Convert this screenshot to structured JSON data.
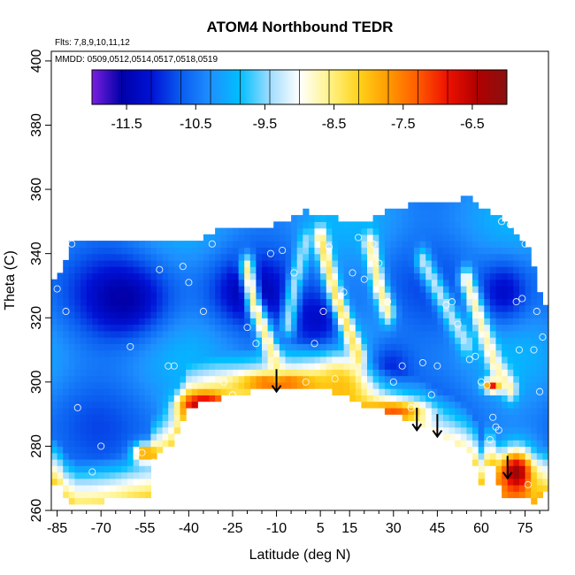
{
  "chart_data": {
    "type": "heatmap",
    "title": "ATOM4 Northbound TEDR",
    "xlabel": "Latitude (deg N)",
    "ylabel": "Theta (C)",
    "xlim": [
      -87,
      83
    ],
    "ylim": [
      260,
      403
    ],
    "x_ticks": [
      -85,
      -70,
      -55,
      -40,
      -25,
      -10,
      5,
      15,
      30,
      45,
      60,
      75
    ],
    "y_ticks": [
      260,
      280,
      300,
      320,
      340,
      360,
      380,
      400
    ],
    "annotations": {
      "flights": "Flts: 7,8,9,10,11,12",
      "dates": "MMDD: 0509,0512,0514,0517,0518,0519"
    },
    "colorbar": {
      "ticks": [
        "-11.5",
        "-10.5",
        "-9.5",
        "-8.5",
        "-7.5",
        "-6.5"
      ],
      "tick_values": [
        -11.5,
        -10.5,
        -9.5,
        -8.5,
        -7.5,
        -6.5
      ],
      "range": [
        -12.0,
        -6.0
      ],
      "colors": [
        "#7a1fe0",
        "#0000a8",
        "#0012d6",
        "#0a5cf0",
        "#1e90ff",
        "#00bfff",
        "#9fdcff",
        "#ffffff",
        "#fff38a",
        "#ffd21a",
        "#ff9a00",
        "#ff5a00",
        "#ee1000",
        "#b00000",
        "#8a1010"
      ]
    },
    "boundary_bottom": [
      [
        -85,
        269
      ],
      [
        -82,
        264
      ],
      [
        -78,
        262
      ],
      [
        -70,
        263
      ],
      [
        -60,
        264
      ],
      [
        -53,
        264
      ],
      [
        -52,
        276
      ],
      [
        -46,
        281
      ],
      [
        -40,
        292
      ],
      [
        -30,
        295
      ],
      [
        -20,
        297
      ],
      [
        -10,
        299
      ],
      [
        0,
        299
      ],
      [
        10,
        297
      ],
      [
        20,
        293
      ],
      [
        30,
        290
      ],
      [
        40,
        287
      ],
      [
        45,
        284
      ],
      [
        50,
        282
      ],
      [
        55,
        279
      ],
      [
        58,
        275
      ],
      [
        60,
        269
      ],
      [
        63,
        276
      ],
      [
        67,
        265
      ],
      [
        72,
        264
      ],
      [
        78,
        263
      ],
      [
        81,
        266
      ]
    ],
    "boundary_top": [
      [
        -85,
        331
      ],
      [
        -80,
        343
      ],
      [
        -70,
        344
      ],
      [
        -55,
        344
      ],
      [
        -40,
        343
      ],
      [
        -30,
        347
      ],
      [
        -20,
        348
      ],
      [
        -10,
        349
      ],
      [
        0,
        353
      ],
      [
        10,
        351
      ],
      [
        20,
        350
      ],
      [
        30,
        354
      ],
      [
        40,
        356
      ],
      [
        50,
        356
      ],
      [
        55,
        358
      ],
      [
        60,
        354
      ],
      [
        68,
        350
      ],
      [
        75,
        344
      ],
      [
        79,
        332
      ],
      [
        81,
        323
      ]
    ],
    "high_turbulence_centers": [
      {
        "lat": -35,
        "theta": 293,
        "value": -6.4,
        "rx": 8,
        "ry": 4
      },
      {
        "lat": -10,
        "theta": 300,
        "value": -7.3,
        "rx": 14,
        "ry": 3
      },
      {
        "lat": 12,
        "theta": 298,
        "value": -8.0,
        "rx": 8,
        "ry": 9
      },
      {
        "lat": 30,
        "theta": 291,
        "value": -7.3,
        "rx": 10,
        "ry": 3
      },
      {
        "lat": 72,
        "theta": 272,
        "value": -6.2,
        "rx": 6,
        "ry": 7
      },
      {
        "lat": 64,
        "theta": 299,
        "value": -6.6,
        "rx": 3,
        "ry": 2
      },
      {
        "lat": -55,
        "theta": 278,
        "value": -7.5,
        "rx": 4,
        "ry": 3
      }
    ],
    "low_turbulence_centers": [
      {
        "lat": -60,
        "theta": 325,
        "value": -11.3,
        "rx": 15,
        "ry": 12
      },
      {
        "lat": -20,
        "theta": 328,
        "value": -11.2,
        "rx": 12,
        "ry": 10
      },
      {
        "lat": 5,
        "theta": 318,
        "value": -11.4,
        "rx": 10,
        "ry": 10
      },
      {
        "lat": 28,
        "theta": 305,
        "value": -11.2,
        "rx": 8,
        "ry": 8
      },
      {
        "lat": 68,
        "theta": 328,
        "value": -11.3,
        "rx": 8,
        "ry": 10
      }
    ],
    "ridge_lines": [
      {
        "points": [
          [
            -20,
            336
          ],
          [
            -18,
            325
          ],
          [
            -13,
            313
          ],
          [
            -10,
            305
          ]
        ],
        "value": -8.6
      },
      {
        "points": [
          [
            5,
            345
          ],
          [
            10,
            328
          ],
          [
            14,
            318
          ],
          [
            18,
            308
          ]
        ],
        "value": -8.4
      },
      {
        "points": [
          [
            0,
            344
          ],
          [
            -4,
            330
          ],
          [
            -6,
            318
          ]
        ],
        "value": -9.4
      },
      {
        "points": [
          [
            22,
            343
          ],
          [
            25,
            330
          ],
          [
            28,
            322
          ]
        ],
        "value": -8.6
      },
      {
        "points": [
          [
            55,
            332
          ],
          [
            60,
            318
          ],
          [
            65,
            305
          ],
          [
            70,
            298
          ]
        ],
        "value": -8.7
      },
      {
        "points": [
          [
            40,
            338
          ],
          [
            50,
            320
          ],
          [
            55,
            312
          ]
        ],
        "value": -9.3
      }
    ],
    "arrows": [
      {
        "lat": -10,
        "theta_top": 304,
        "theta_tip": 297
      },
      {
        "lat": 38,
        "theta_top": 292,
        "theta_tip": 285
      },
      {
        "lat": 45,
        "theta_top": 290,
        "theta_tip": 283
      },
      {
        "lat": 69,
        "theta_top": 277,
        "theta_tip": 270
      }
    ],
    "sample_points": [
      [
        -85,
        329
      ],
      [
        -82,
        322
      ],
      [
        -80,
        343
      ],
      [
        -78,
        292
      ],
      [
        -73,
        272
      ],
      [
        -70,
        280
      ],
      [
        -60,
        311
      ],
      [
        -56,
        278
      ],
      [
        -52,
        275
      ],
      [
        -50,
        335
      ],
      [
        -47,
        305
      ],
      [
        -45,
        305
      ],
      [
        -42,
        336
      ],
      [
        -40,
        331
      ],
      [
        -35,
        322
      ],
      [
        -32,
        343
      ],
      [
        -28,
        300
      ],
      [
        -25,
        296
      ],
      [
        -20,
        317
      ],
      [
        -17,
        312
      ],
      [
        -12,
        340
      ],
      [
        -8,
        341
      ],
      [
        -4,
        334
      ],
      [
        0,
        300
      ],
      [
        3,
        312
      ],
      [
        6,
        322
      ],
      [
        8,
        342
      ],
      [
        10,
        301
      ],
      [
        13,
        328
      ],
      [
        16,
        334
      ],
      [
        18,
        345
      ],
      [
        20,
        332
      ],
      [
        23,
        343
      ],
      [
        25,
        337
      ],
      [
        28,
        325
      ],
      [
        30,
        300
      ],
      [
        33,
        305
      ],
      [
        36,
        292
      ],
      [
        40,
        306
      ],
      [
        43,
        296
      ],
      [
        45,
        305
      ],
      [
        48,
        324
      ],
      [
        50,
        325
      ],
      [
        52,
        318
      ],
      [
        56,
        307
      ],
      [
        58,
        308
      ],
      [
        60,
        300
      ],
      [
        62,
        299
      ],
      [
        63,
        282
      ],
      [
        64,
        289
      ],
      [
        65,
        286
      ],
      [
        66,
        285
      ],
      [
        67,
        350
      ],
      [
        70,
        349
      ],
      [
        72,
        325
      ],
      [
        73,
        310
      ],
      [
        74,
        326
      ],
      [
        75,
        343
      ],
      [
        76,
        268
      ],
      [
        78,
        310
      ],
      [
        79,
        322
      ],
      [
        80,
        297
      ],
      [
        81,
        314
      ]
    ]
  }
}
